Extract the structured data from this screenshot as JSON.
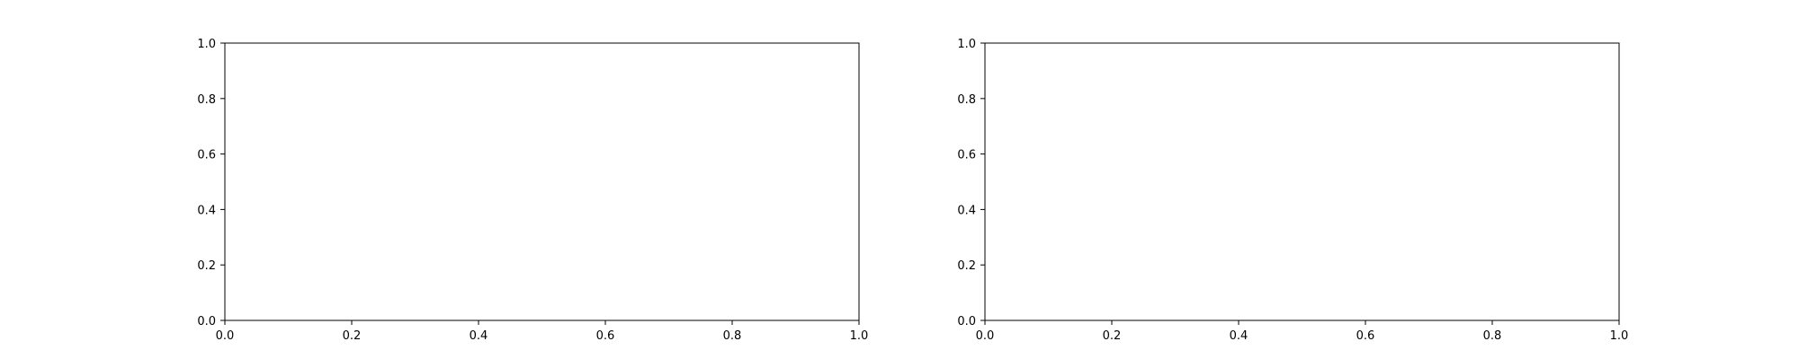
{
  "chart_data": [
    {
      "type": "line",
      "title": "",
      "xlabel": "",
      "ylabel": "",
      "xlim": [
        0,
        1
      ],
      "ylim": [
        0,
        1
      ],
      "grid": false,
      "series": [],
      "x_ticks": [
        "0.0",
        "0.2",
        "0.4",
        "0.6",
        "0.8",
        "1.0"
      ],
      "y_ticks": [
        "0.0",
        "0.2",
        "0.4",
        "0.6",
        "0.8",
        "1.0"
      ]
    },
    {
      "type": "line",
      "title": "",
      "xlabel": "",
      "ylabel": "",
      "xlim": [
        0,
        1
      ],
      "ylim": [
        0,
        1
      ],
      "grid": false,
      "series": [],
      "x_ticks": [
        "0.0",
        "0.2",
        "0.4",
        "0.6",
        "0.8",
        "1.0"
      ],
      "y_ticks": [
        "0.0",
        "0.2",
        "0.4",
        "0.6",
        "0.8",
        "1.0"
      ]
    }
  ]
}
